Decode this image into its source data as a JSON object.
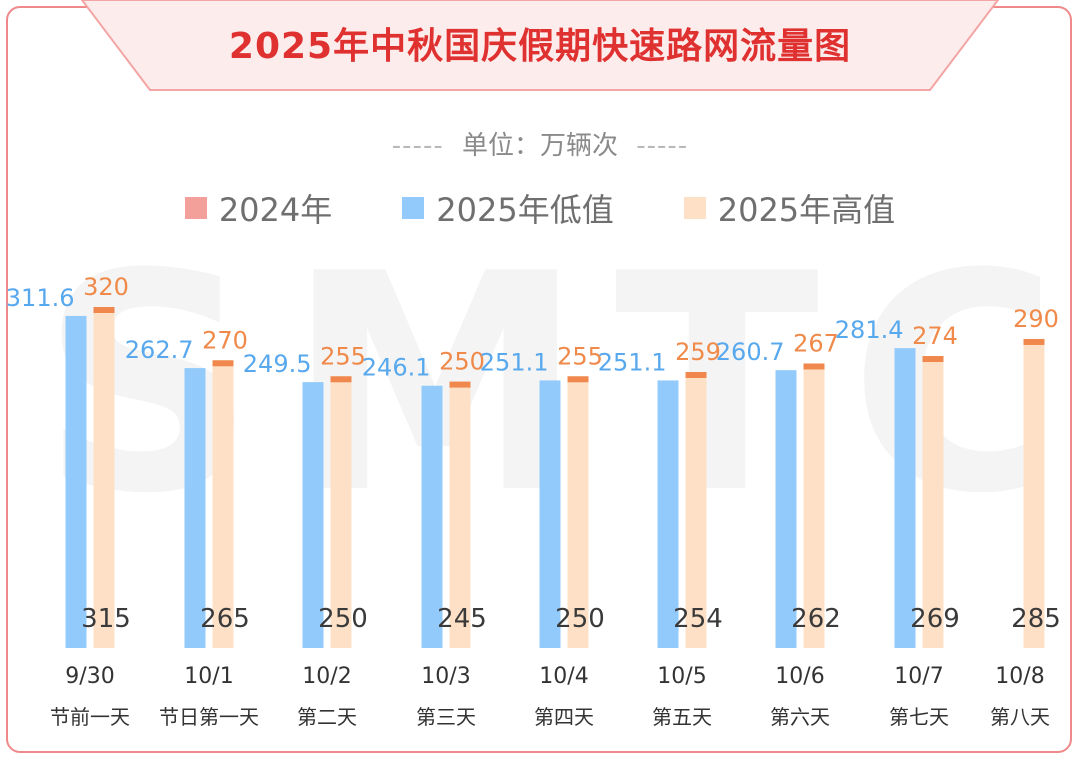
{
  "title": "2025年中秋国庆假期快速路网流量图",
  "unit": {
    "dashes": "-----",
    "label": "单位：万辆次"
  },
  "watermark": "SMTCC",
  "legend": [
    {
      "label": "2024年",
      "color": "#f4a09a"
    },
    {
      "label": "2025年低值",
      "color": "#92cbfb"
    },
    {
      "label": "2025年高值",
      "color": "#fde0c6"
    }
  ],
  "colors": {
    "low_label": "#58a8ee",
    "high_label": "#f08a4b",
    "high_cap": "#f0884e",
    "base_label": "#3a3a3a",
    "axis_text": "#333333"
  },
  "chart_data": {
    "type": "bar",
    "title": "2025年中秋国庆假期快速路网流量图",
    "unit": "万辆次",
    "categories": [
      "9/30",
      "10/1",
      "10/2",
      "10/3",
      "10/4",
      "10/5",
      "10/6",
      "10/7",
      "10/8"
    ],
    "sublabels": [
      "节前一天",
      "节日第一天",
      "第二天",
      "第三天",
      "第四天",
      "第五天",
      "第六天",
      "第七天",
      "第八天"
    ],
    "series": [
      {
        "name": "2024年",
        "values": [
          315,
          265,
          250,
          245,
          250,
          254,
          262,
          269,
          285
        ]
      },
      {
        "name": "2025年低值",
        "values": [
          311.6,
          262.7,
          249.5,
          246.1,
          251.1,
          251.1,
          260.7,
          281.4,
          null
        ]
      },
      {
        "name": "2025年高值",
        "values": [
          320,
          270,
          255,
          250,
          255,
          259,
          267,
          274,
          290
        ]
      }
    ],
    "low_labels": [
      "311.6",
      "262.7",
      "249.5",
      "246.1",
      "251.1",
      "251.1",
      "260.7",
      "281.4",
      ""
    ],
    "high_labels": [
      "320",
      "270",
      "255",
      "250",
      "255",
      "259",
      "267",
      "274",
      "290"
    ],
    "base_labels": [
      "315",
      "265",
      "250",
      "245",
      "250",
      "254",
      "262",
      "269",
      "285"
    ],
    "legend_position": "top",
    "grid": false
  }
}
